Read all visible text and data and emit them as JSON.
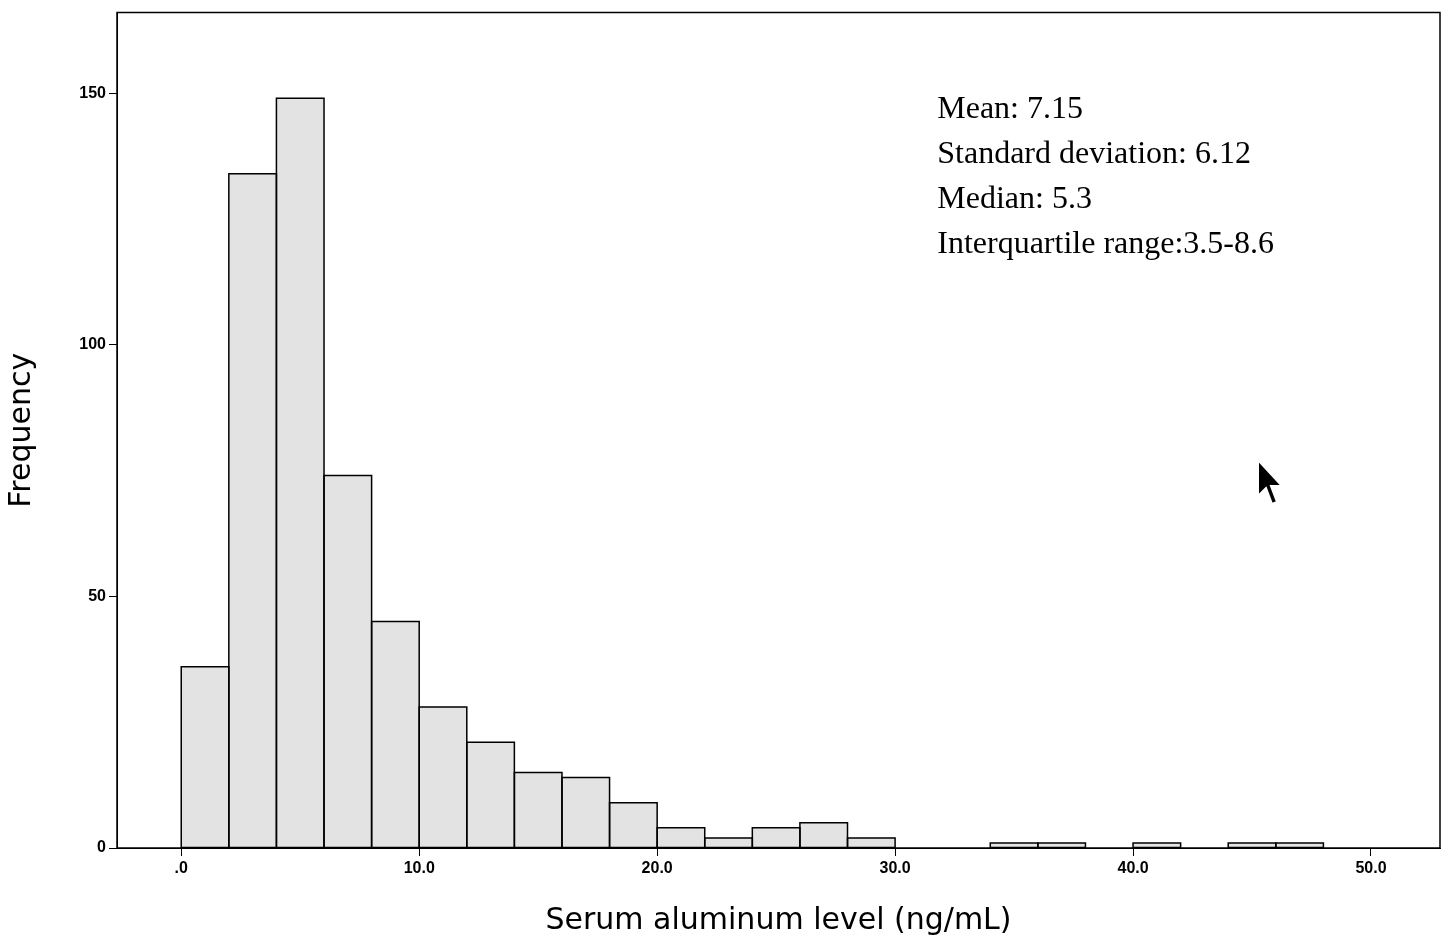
{
  "chart_data": {
    "type": "histogram",
    "xlabel": "Serum aluminum level (ng/mL)",
    "ylabel": "Frequency",
    "bins": [
      0,
      2,
      4,
      6,
      8,
      10,
      12,
      14,
      16,
      18,
      20,
      22,
      24,
      26,
      28,
      30,
      32,
      34,
      36,
      38,
      40,
      42,
      44,
      46,
      48
    ],
    "values": [
      36,
      134,
      149,
      74,
      45,
      28,
      21,
      15,
      14,
      9,
      4,
      2,
      4,
      5,
      2,
      0,
      0,
      1,
      1,
      0,
      1,
      0,
      1,
      1
    ],
    "color": "#e3e3e3",
    "xlim": [
      -2.7,
      52.9
    ],
    "xticks": [
      {
        "value": 0,
        "label": ".0"
      },
      {
        "value": 10,
        "label": "10.0"
      },
      {
        "value": 20,
        "label": "20.0"
      },
      {
        "value": 30,
        "label": "30.0"
      },
      {
        "value": 40,
        "label": "40.0"
      },
      {
        "value": 50,
        "label": "50.0"
      }
    ],
    "ylim": [
      0,
      166
    ],
    "yticks": [
      0,
      50,
      100,
      150
    ],
    "grid": false,
    "legend": false,
    "annotations": [
      "Mean: 7.15",
      "Standard deviation: 6.12",
      "Median: 5.3",
      "Interquartile range:3.5-8.6"
    ]
  }
}
